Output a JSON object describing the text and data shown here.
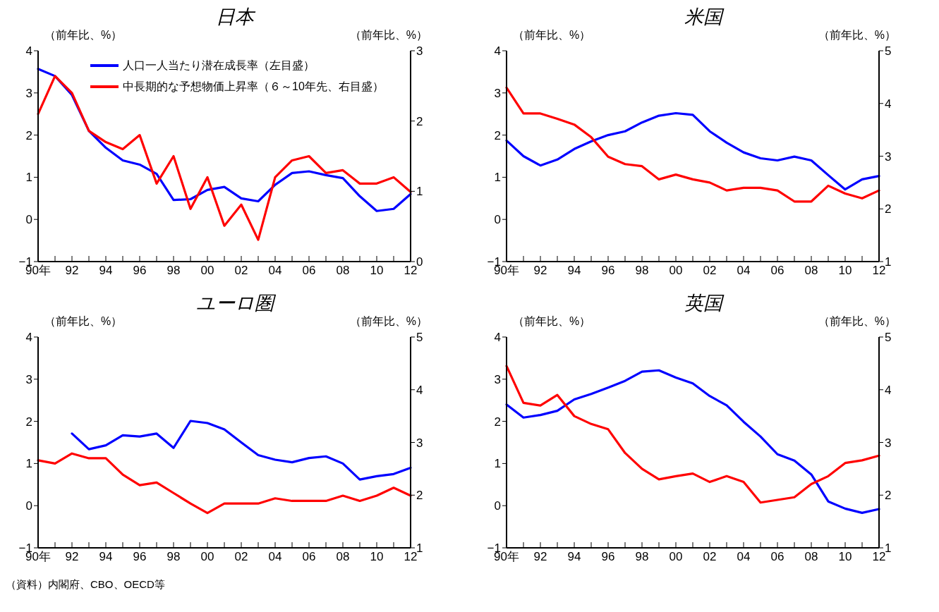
{
  "chart_data": [
    {
      "type": "line",
      "title": "日本",
      "ylabel": "（前年比、%）",
      "y2label": "（前年比、%）",
      "categories": [
        "90年",
        null,
        "92",
        null,
        "94",
        null,
        "96",
        null,
        "98",
        null,
        "00",
        null,
        "02",
        null,
        "04",
        null,
        "06",
        null,
        "08",
        null,
        "10",
        null,
        "12"
      ],
      "series": [
        {
          "name": "人口一人当たり潜在成長率（左目盛）",
          "color": "#0000ff",
          "values": [
            3.57,
            3.4,
            2.95,
            2.1,
            1.7,
            1.4,
            1.3,
            1.08,
            0.46,
            0.48,
            0.7,
            0.77,
            0.5,
            0.43,
            0.82,
            1.1,
            1.14,
            1.05,
            0.98,
            0.55,
            0.2,
            0.25,
            0.6
          ]
        },
        {
          "name": "中長期的な予想物価上昇率（６～10年先、右目盛）",
          "color": "#ff0000",
          "axis": "y2",
          "values": [
            2.1,
            2.64,
            2.4,
            1.86,
            1.7,
            1.6,
            1.8,
            1.11,
            1.5,
            0.75,
            1.2,
            0.51,
            0.81,
            0.31,
            1.2,
            1.44,
            1.5,
            1.26,
            1.3,
            1.11,
            1.11,
            1.2,
            0.99
          ]
        }
      ],
      "ylim": [
        -1,
        4
      ],
      "yticks": [
        -1,
        0,
        1,
        2,
        3,
        4
      ],
      "y2lim": [
        0,
        3
      ],
      "y2ticks": [
        0,
        1,
        2,
        3
      ],
      "legend": "top left",
      "grid": false
    },
    {
      "type": "line",
      "title": "米国",
      "ylabel": "（前年比、%）",
      "y2label": "（前年比、%）",
      "categories": [
        "90年",
        null,
        "92",
        null,
        "94",
        null,
        "96",
        null,
        "98",
        null,
        "00",
        null,
        "02",
        null,
        "04",
        null,
        "06",
        null,
        "08",
        null,
        "10",
        null,
        "12"
      ],
      "series": [
        {
          "color": "#0000ff",
          "values": [
            1.87,
            1.5,
            1.28,
            1.42,
            1.67,
            1.85,
            2.0,
            2.09,
            2.3,
            2.46,
            2.52,
            2.48,
            2.09,
            1.82,
            1.59,
            1.45,
            1.4,
            1.49,
            1.4,
            1.05,
            0.71,
            0.95,
            1.03
          ]
        },
        {
          "color": "#ff0000",
          "axis": "y2",
          "values": [
            4.3,
            3.81,
            3.81,
            3.71,
            3.6,
            3.36,
            2.99,
            2.85,
            2.81,
            2.56,
            2.65,
            2.56,
            2.5,
            2.35,
            2.4,
            2.4,
            2.35,
            2.14,
            2.14,
            2.44,
            2.29,
            2.2,
            2.35
          ]
        }
      ],
      "ylim": [
        -1,
        4
      ],
      "yticks": [
        -1,
        0,
        1,
        2,
        3,
        4
      ],
      "y2lim": [
        1,
        5
      ],
      "y2ticks": [
        1,
        2,
        3,
        4,
        5
      ],
      "grid": false
    },
    {
      "type": "line",
      "title": "ユーロ圏",
      "ylabel": "（前年比、%）",
      "y2label": "（前年比、%）",
      "categories": [
        "90年",
        null,
        "92",
        null,
        "94",
        null,
        "96",
        null,
        "98",
        null,
        "00",
        null,
        "02",
        null,
        "04",
        null,
        "06",
        null,
        "08",
        null,
        "10",
        null,
        "12"
      ],
      "series": [
        {
          "color": "#0000ff",
          "values": [
            null,
            null,
            1.71,
            1.34,
            1.43,
            1.67,
            1.64,
            1.71,
            1.37,
            2.01,
            1.96,
            1.81,
            1.5,
            1.2,
            1.09,
            1.03,
            1.13,
            1.17,
            1.0,
            0.62,
            0.7,
            0.75,
            0.9
          ]
        },
        {
          "color": "#ff0000",
          "axis": "y2",
          "values": [
            2.66,
            2.6,
            2.79,
            2.7,
            2.7,
            2.39,
            2.19,
            2.24,
            2.04,
            1.84,
            1.66,
            1.84,
            1.84,
            1.84,
            1.94,
            1.89,
            1.89,
            1.89,
            1.99,
            1.89,
            1.99,
            2.14,
            1.99
          ]
        }
      ],
      "ylim": [
        -1,
        4
      ],
      "yticks": [
        -1,
        0,
        1,
        2,
        3,
        4
      ],
      "y2lim": [
        1,
        5
      ],
      "y2ticks": [
        1,
        2,
        3,
        4,
        5
      ],
      "grid": false,
      "annotations": [
        "（資料）内閣府、CBO、OECD等"
      ]
    },
    {
      "type": "line",
      "title": "英国",
      "ylabel": "（前年比、%）",
      "y2label": "（前年比、%）",
      "categories": [
        "90年",
        null,
        "92",
        null,
        "94",
        null,
        "96",
        null,
        "98",
        null,
        "00",
        null,
        "02",
        null,
        "04",
        null,
        "06",
        null,
        "08",
        null,
        "10",
        null,
        "12"
      ],
      "series": [
        {
          "color": "#0000ff",
          "values": [
            2.4,
            2.09,
            2.15,
            2.25,
            2.52,
            2.65,
            2.8,
            2.96,
            3.18,
            3.21,
            3.04,
            2.9,
            2.6,
            2.38,
            1.99,
            1.64,
            1.22,
            1.07,
            0.74,
            0.1,
            -0.07,
            -0.17,
            -0.08
          ]
        },
        {
          "color": "#ff0000",
          "axis": "y2",
          "values": [
            4.45,
            3.75,
            3.7,
            3.9,
            3.5,
            3.35,
            3.25,
            2.8,
            2.5,
            2.3,
            2.36,
            2.41,
            2.25,
            2.36,
            2.25,
            1.86,
            1.91,
            1.96,
            2.21,
            2.36,
            2.61,
            2.66,
            2.75
          ]
        }
      ],
      "ylim": [
        -1,
        4
      ],
      "yticks": [
        -1,
        0,
        1,
        2,
        3,
        4
      ],
      "y2lim": [
        1,
        5
      ],
      "y2ticks": [
        1,
        2,
        3,
        4,
        5
      ],
      "grid": false
    }
  ]
}
